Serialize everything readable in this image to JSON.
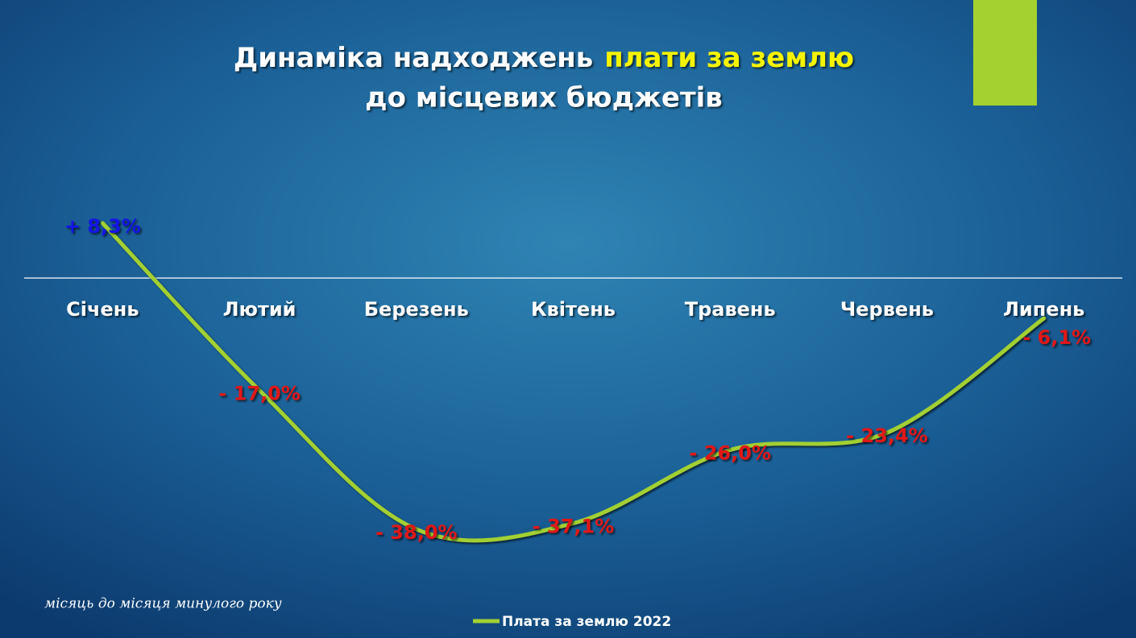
{
  "chart_data": {
    "type": "line",
    "title": {
      "part1": "Динаміка надходжень",
      "highlight": "плати за землю",
      "line2": "до місцевих бюджетів"
    },
    "categories": [
      "Січень",
      "Лютий",
      "Березень",
      "Квітень",
      "Травень",
      "Червень",
      "Липень"
    ],
    "series": [
      {
        "name": "Плата за землю 2022",
        "color": "#a2d033",
        "values": [
          8.3,
          -17.0,
          -38.0,
          -37.1,
          -26.0,
          -23.4,
          -6.1
        ],
        "value_labels": [
          "+ 8,3%",
          "- 17,0%",
          "- 38,0%",
          "- 37,1%",
          "- 26,0%",
          "- 23,4%",
          "- 6,1%"
        ]
      }
    ],
    "positive_label_color": "#1414e6",
    "negative_label_color": "#e01818",
    "smooth": true,
    "note": "місяць до місяця минулого року"
  }
}
